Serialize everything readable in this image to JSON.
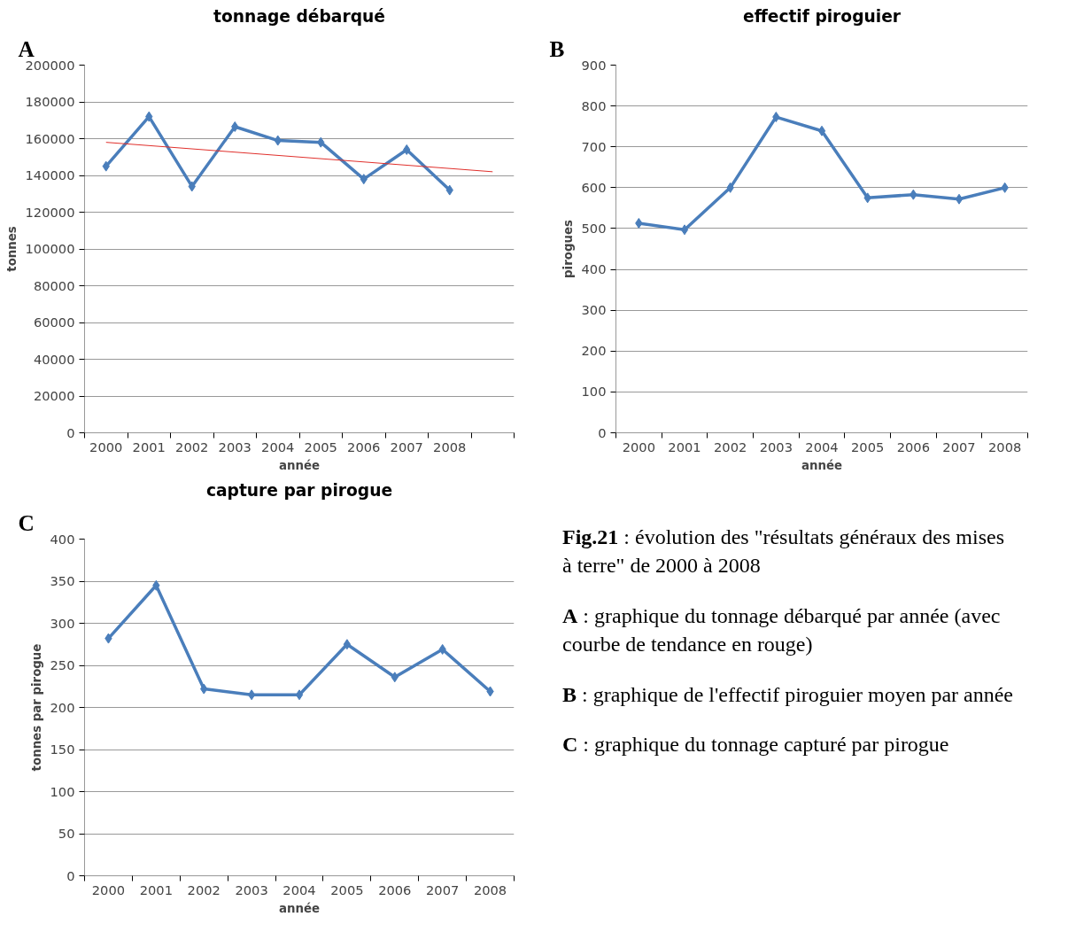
{
  "chart_data": [
    {
      "type": "line",
      "title": "tonnage débarqué",
      "xlabel": "année",
      "ylabel": "tonnes",
      "annotations": [
        "A"
      ],
      "categories": [
        "2000",
        "2001",
        "2002",
        "2003",
        "2004",
        "2005",
        "2006",
        "2007",
        "2008",
        null
      ],
      "series": [
        {
          "color": "#4a7ebb",
          "values": [
            145000,
            172000,
            134000,
            166500,
            159000,
            158000,
            138000,
            154000,
            132000,
            null
          ],
          "marker": "diamond"
        },
        {
          "color": "#e0302c",
          "values": [
            158000,
            null,
            null,
            null,
            null,
            null,
            null,
            null,
            null,
            142000
          ],
          "marker": "none"
        }
      ],
      "ylim": [
        0,
        200000
      ],
      "yticks": [
        0,
        20000,
        40000,
        60000,
        80000,
        100000,
        120000,
        140000,
        160000,
        180000,
        200000
      ],
      "grid": "y"
    },
    {
      "type": "line",
      "title": "effectif piroguier",
      "xlabel": "année",
      "ylabel": "pirogues",
      "annotations": [
        "B"
      ],
      "categories": [
        "2000",
        "2001",
        "2002",
        "2003",
        "2004",
        "2005",
        "2006",
        "2007",
        "2008"
      ],
      "series": [
        {
          "color": "#4a7ebb",
          "values": [
            513,
            497,
            600,
            773,
            739,
            575,
            583,
            572,
            600
          ],
          "marker": "diamond"
        }
      ],
      "ylim": [
        0,
        900
      ],
      "yticks": [
        0,
        100,
        200,
        300,
        400,
        500,
        600,
        700,
        800,
        900
      ],
      "grid": "y"
    },
    {
      "type": "line",
      "title": "capture par pirogue",
      "xlabel": "année",
      "ylabel": "tonnes par pirogue",
      "annotations": [
        "C"
      ],
      "categories": [
        "2000",
        "2001",
        "2002",
        "2003",
        "2004",
        "2005",
        "2006",
        "2007",
        "2008"
      ],
      "series": [
        {
          "color": "#4a7ebb",
          "values": [
            282,
            345,
            222,
            215,
            215,
            275,
            236,
            269,
            219
          ],
          "marker": "diamond"
        }
      ],
      "ylim": [
        0,
        400
      ],
      "yticks": [
        0,
        50,
        100,
        150,
        200,
        250,
        300,
        350,
        400
      ],
      "grid": "y"
    },
    {
      "type": "other",
      "annotations": [
        "Fig.21 : évolution des \"résultats généraux des mises à terre\" de 2000 à 2008",
        "A : graphique du tonnage débarqué par année (avec courbe de tendance en rouge)",
        "B : graphique de l'effectif piroguier moyen par année",
        "C : graphique du tonnage capturé par pirogue"
      ]
    }
  ]
}
